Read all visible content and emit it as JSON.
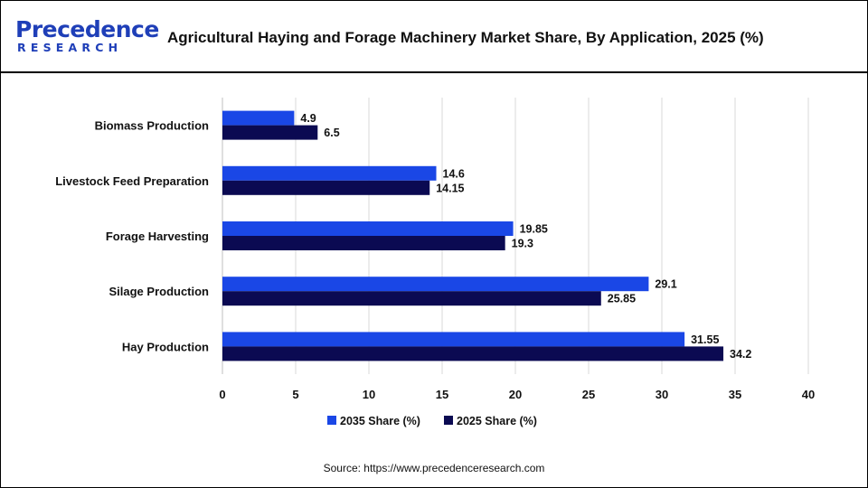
{
  "header": {
    "logo_word": "Precedence",
    "logo_sub": "RESEARCH",
    "title": "Agricultural Haying and Forage Machinery Market Share, By Application,  2025 (%)"
  },
  "footer": {
    "source": "Source: https://www.precedenceresearch.com"
  },
  "colors": {
    "series_2035": "#1a47e6",
    "series_2025": "#0b0a52",
    "grid": "#d9d9d9"
  },
  "chart_data": {
    "type": "bar",
    "orientation": "horizontal",
    "categories": [
      "Biomass Production",
      "Livestock Feed Preparation",
      "Forage Harvesting",
      "Silage Production",
      "Hay Production"
    ],
    "series": [
      {
        "name": "2035 Share (%)",
        "values": [
          4.9,
          14.6,
          19.85,
          29.1,
          31.55
        ]
      },
      {
        "name": "2025 Share (%)",
        "values": [
          6.5,
          14.15,
          19.3,
          25.85,
          34.2
        ]
      }
    ],
    "value_labels": [
      [
        "4.9",
        "14.6",
        "19.85",
        "29.1",
        "31.55"
      ],
      [
        "6.5",
        "14.15",
        "19.3",
        "25.85",
        "34.2"
      ]
    ],
    "xlim": [
      0,
      40
    ],
    "xticks": [
      "0",
      "5",
      "10",
      "15",
      "20",
      "25",
      "30",
      "35",
      "40"
    ],
    "grid": true,
    "legend_position": "bottom"
  }
}
